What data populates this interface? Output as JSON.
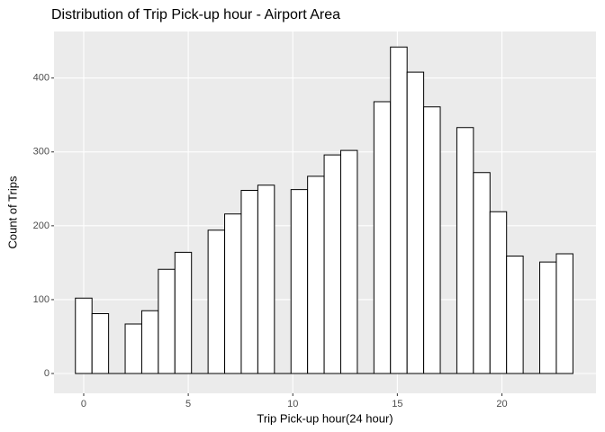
{
  "chart_data": {
    "type": "histogram",
    "title": "Distribution of Trip Pick-up hour - Airport Area",
    "x_label": "Trip Pick-up hour(24 hour)",
    "y_label": "Count of Trips",
    "bins": [
      -0.397,
      0.397,
      1.19,
      1.983,
      2.776,
      3.569,
      4.362,
      5.155,
      5.948,
      6.741,
      7.534,
      8.328,
      9.121,
      9.914,
      10.707,
      11.5,
      12.293,
      13.086,
      13.879,
      14.672,
      15.466,
      16.259,
      17.052,
      17.845,
      18.638,
      19.431,
      20.224,
      21.017,
      21.81,
      22.603,
      23.397
    ],
    "values": [
      102,
      81,
      0,
      67,
      85,
      141,
      164,
      0,
      194,
      216,
      248,
      255,
      0,
      249,
      267,
      296,
      302,
      0,
      368,
      442,
      408,
      361,
      0,
      333,
      272,
      219,
      159,
      0,
      151,
      162
    ],
    "color": "#ffffff",
    "edge_color": "#000000",
    "xlim": [
      -1.42,
      24.5
    ],
    "xticks": [
      0,
      5,
      10,
      15,
      20
    ],
    "ylim": [
      -26.8,
      463
    ],
    "yticks": [
      0,
      100,
      200,
      300,
      400
    ],
    "grid": true
  }
}
